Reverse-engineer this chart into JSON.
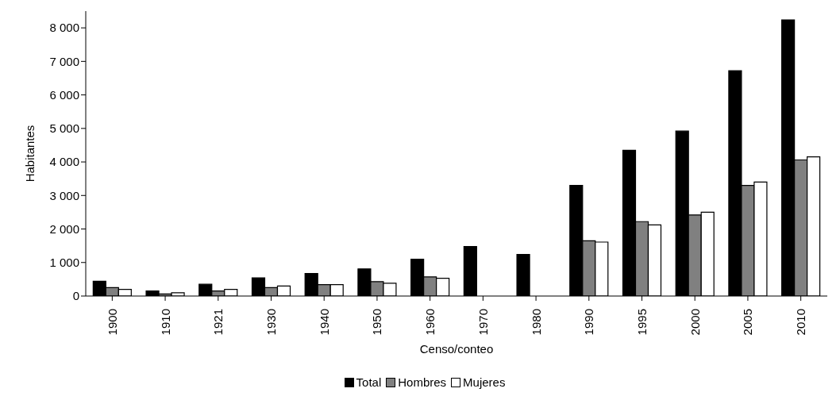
{
  "chart_data": {
    "type": "bar",
    "xlabel": "Censo/conteo",
    "ylabel": "Habitantes",
    "categories": [
      "1900",
      "1910",
      "1921",
      "1930",
      "1940",
      "1950",
      "1960",
      "1970",
      "1980",
      "1990",
      "1995",
      "2000",
      "2005",
      "2010"
    ],
    "series": [
      {
        "name": "Total",
        "color": "#000000",
        "values": [
          440,
          150,
          350,
          540,
          670,
          810,
          1100,
          1480,
          1240,
          3300,
          4350,
          4920,
          6720,
          8240
        ]
      },
      {
        "name": "Hombres",
        "color": "#808080",
        "values": [
          250,
          60,
          150,
          250,
          340,
          430,
          570,
          null,
          null,
          1650,
          2220,
          2420,
          3300,
          4060
        ]
      },
      {
        "name": "Mujeres",
        "color": "#ffffff",
        "values": [
          200,
          100,
          200,
          300,
          340,
          380,
          530,
          null,
          null,
          1610,
          2120,
          2500,
          3400,
          4150
        ]
      }
    ],
    "ylim": [
      0,
      8500
    ],
    "yticks": [
      {
        "value": 0,
        "label": "0"
      },
      {
        "value": 1000,
        "label": "1 000"
      },
      {
        "value": 2000,
        "label": "2 000"
      },
      {
        "value": 3000,
        "label": "3 000"
      },
      {
        "value": 4000,
        "label": "4 000"
      },
      {
        "value": 5000,
        "label": "5 000"
      },
      {
        "value": 6000,
        "label": "6 000"
      },
      {
        "value": 7000,
        "label": "7 000"
      },
      {
        "value": 8000,
        "label": "8 000"
      }
    ],
    "grid": false,
    "legend": "bottom"
  }
}
